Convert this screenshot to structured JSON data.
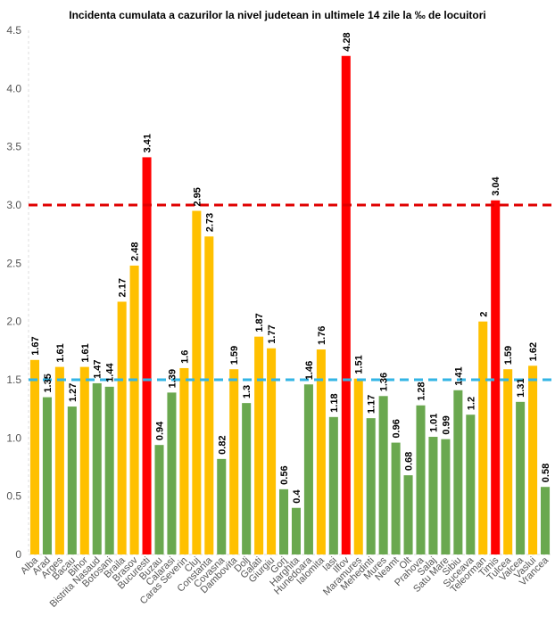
{
  "chart_data": {
    "type": "bar",
    "title": "Incidenta cumulata a cazurilor la nivel judetean in ultimele 14 zile la ‰ de locuitori",
    "xlabel": "",
    "ylabel": "",
    "ylim": [
      0,
      4.5
    ],
    "yticks": [
      "0",
      "0.5",
      "1.0",
      "1.5",
      "2.0",
      "2.5",
      "3.0",
      "3.5",
      "4.0",
      "4.5"
    ],
    "ytick_values": [
      0,
      0.5,
      1.0,
      1.5,
      2.0,
      2.5,
      3.0,
      3.5,
      4.0,
      4.5
    ],
    "categories": [
      "Alba",
      "Arad",
      "Arges",
      "Bacau",
      "Bihor",
      "Bistrita Nasaud",
      "Botosani",
      "Braila",
      "Brasov",
      "Bucuresti",
      "Buzau",
      "Calarasi",
      "Caras Severin",
      "Cluj",
      "Constanta",
      "Covasna",
      "Dambovita",
      "Dolj",
      "Galati",
      "Giurgiu",
      "Gorj",
      "Harghita",
      "Hunedoara",
      "Ialomita",
      "Iasi",
      "Ilfov",
      "Maramures",
      "Mehedinti",
      "Mures",
      "Neamt",
      "Olt",
      "Prahova",
      "Salaj",
      "Satu Mare",
      "Sibiu",
      "Suceava",
      "Teleorman",
      "Timis",
      "Tulcea",
      "Valcea",
      "Vaslui",
      "Vrancea"
    ],
    "values": [
      1.67,
      1.35,
      1.61,
      1.27,
      1.61,
      1.47,
      1.44,
      2.17,
      2.48,
      3.41,
      0.94,
      1.39,
      1.6,
      2.95,
      2.73,
      0.82,
      1.59,
      1.3,
      1.87,
      1.77,
      0.56,
      0.4,
      1.46,
      1.76,
      1.18,
      4.28,
      1.51,
      1.17,
      1.36,
      0.96,
      0.68,
      1.28,
      1.01,
      0.99,
      1.41,
      1.2,
      2,
      3.04,
      1.59,
      1.31,
      1.62,
      0.58
    ],
    "value_labels": [
      "1.67",
      "1.35",
      "1.61",
      "1.27",
      "1.61",
      "1.47",
      "1.44",
      "2.17",
      "2.48",
      "3.41",
      "0.94",
      "1.39",
      "1.6",
      "2.95",
      "2.73",
      "0.82",
      "1.59",
      "1.3",
      "1.87",
      "1.77",
      "0.56",
      "0.4",
      "1.46",
      "1.76",
      "1.18",
      "4.28",
      "1.51",
      "1.17",
      "1.36",
      "0.96",
      "0.68",
      "1.28",
      "1.01",
      "0.99",
      "1.41",
      "1.2",
      "2",
      "3.04",
      "1.59",
      "1.31",
      "1.62",
      "0.58"
    ],
    "thresholds": [
      {
        "value": 3.0,
        "color": "#e00000",
        "style": "dashed"
      },
      {
        "value": 1.5,
        "color": "#33b5e5",
        "style": "dashed"
      }
    ],
    "colors": {
      "green": "#6aa84f",
      "yellow": "#ffc000",
      "red": "#ff0000"
    },
    "color_rule": "green below 1.5, yellow from 1.5 to 3, red above 3",
    "grid": false
  }
}
